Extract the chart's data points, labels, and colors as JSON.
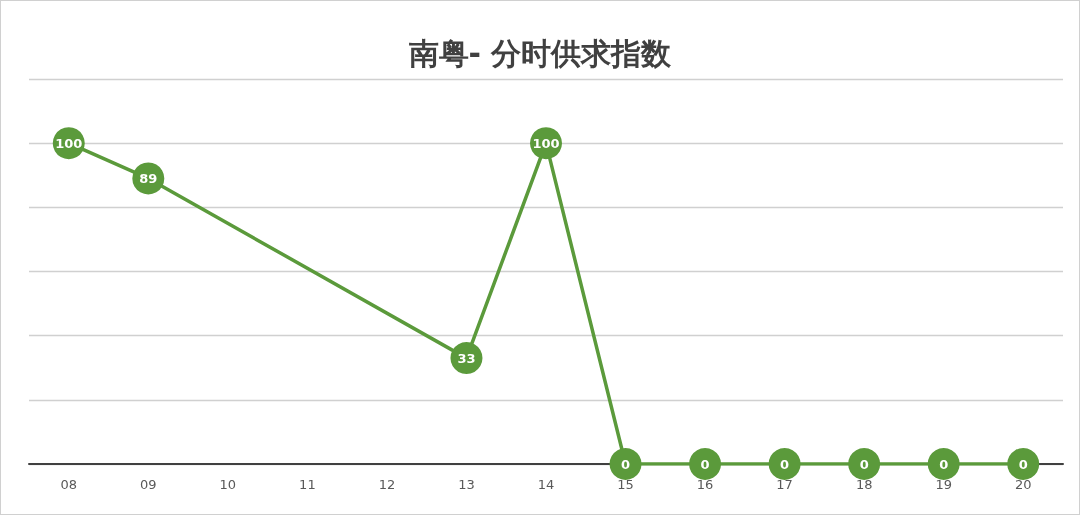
{
  "chart_data": {
    "type": "line",
    "title": "南粤- 分时供求指数",
    "x": [
      8,
      9,
      13,
      14,
      15,
      16,
      17,
      18,
      19,
      20
    ],
    "series": [
      {
        "color": "#5b9a3b",
        "values": [
          100,
          89,
          33,
          100,
          0,
          0,
          0,
          0,
          0,
          0
        ]
      }
    ],
    "xlim": [
      7.5,
      20.5
    ],
    "xticks": [
      {
        "value": 8,
        "label": "08"
      },
      {
        "value": 9,
        "label": "09"
      },
      {
        "value": 10,
        "label": "10"
      },
      {
        "value": 11,
        "label": "11"
      },
      {
        "value": 12,
        "label": "12"
      },
      {
        "value": 13,
        "label": "13"
      },
      {
        "value": 14,
        "label": "14"
      },
      {
        "value": 15,
        "label": "15"
      },
      {
        "value": 16,
        "label": "16"
      },
      {
        "value": 17,
        "label": "17"
      },
      {
        "value": 18,
        "label": "18"
      },
      {
        "value": 19,
        "label": "19"
      },
      {
        "value": 20,
        "label": "20"
      }
    ],
    "ylim": [
      0,
      120
    ],
    "yticks": [
      {
        "value": 0,
        "label": null
      },
      {
        "value": 20,
        "label": null
      },
      {
        "value": 40,
        "label": null
      },
      {
        "value": 60,
        "label": null
      },
      {
        "value": 80,
        "label": null
      },
      {
        "value": 100,
        "label": null
      },
      {
        "value": 120,
        "label": null
      }
    ],
    "tick_labels": "x",
    "grid": "y",
    "data_labels": true,
    "marker": "circle",
    "line_style": "solid"
  }
}
